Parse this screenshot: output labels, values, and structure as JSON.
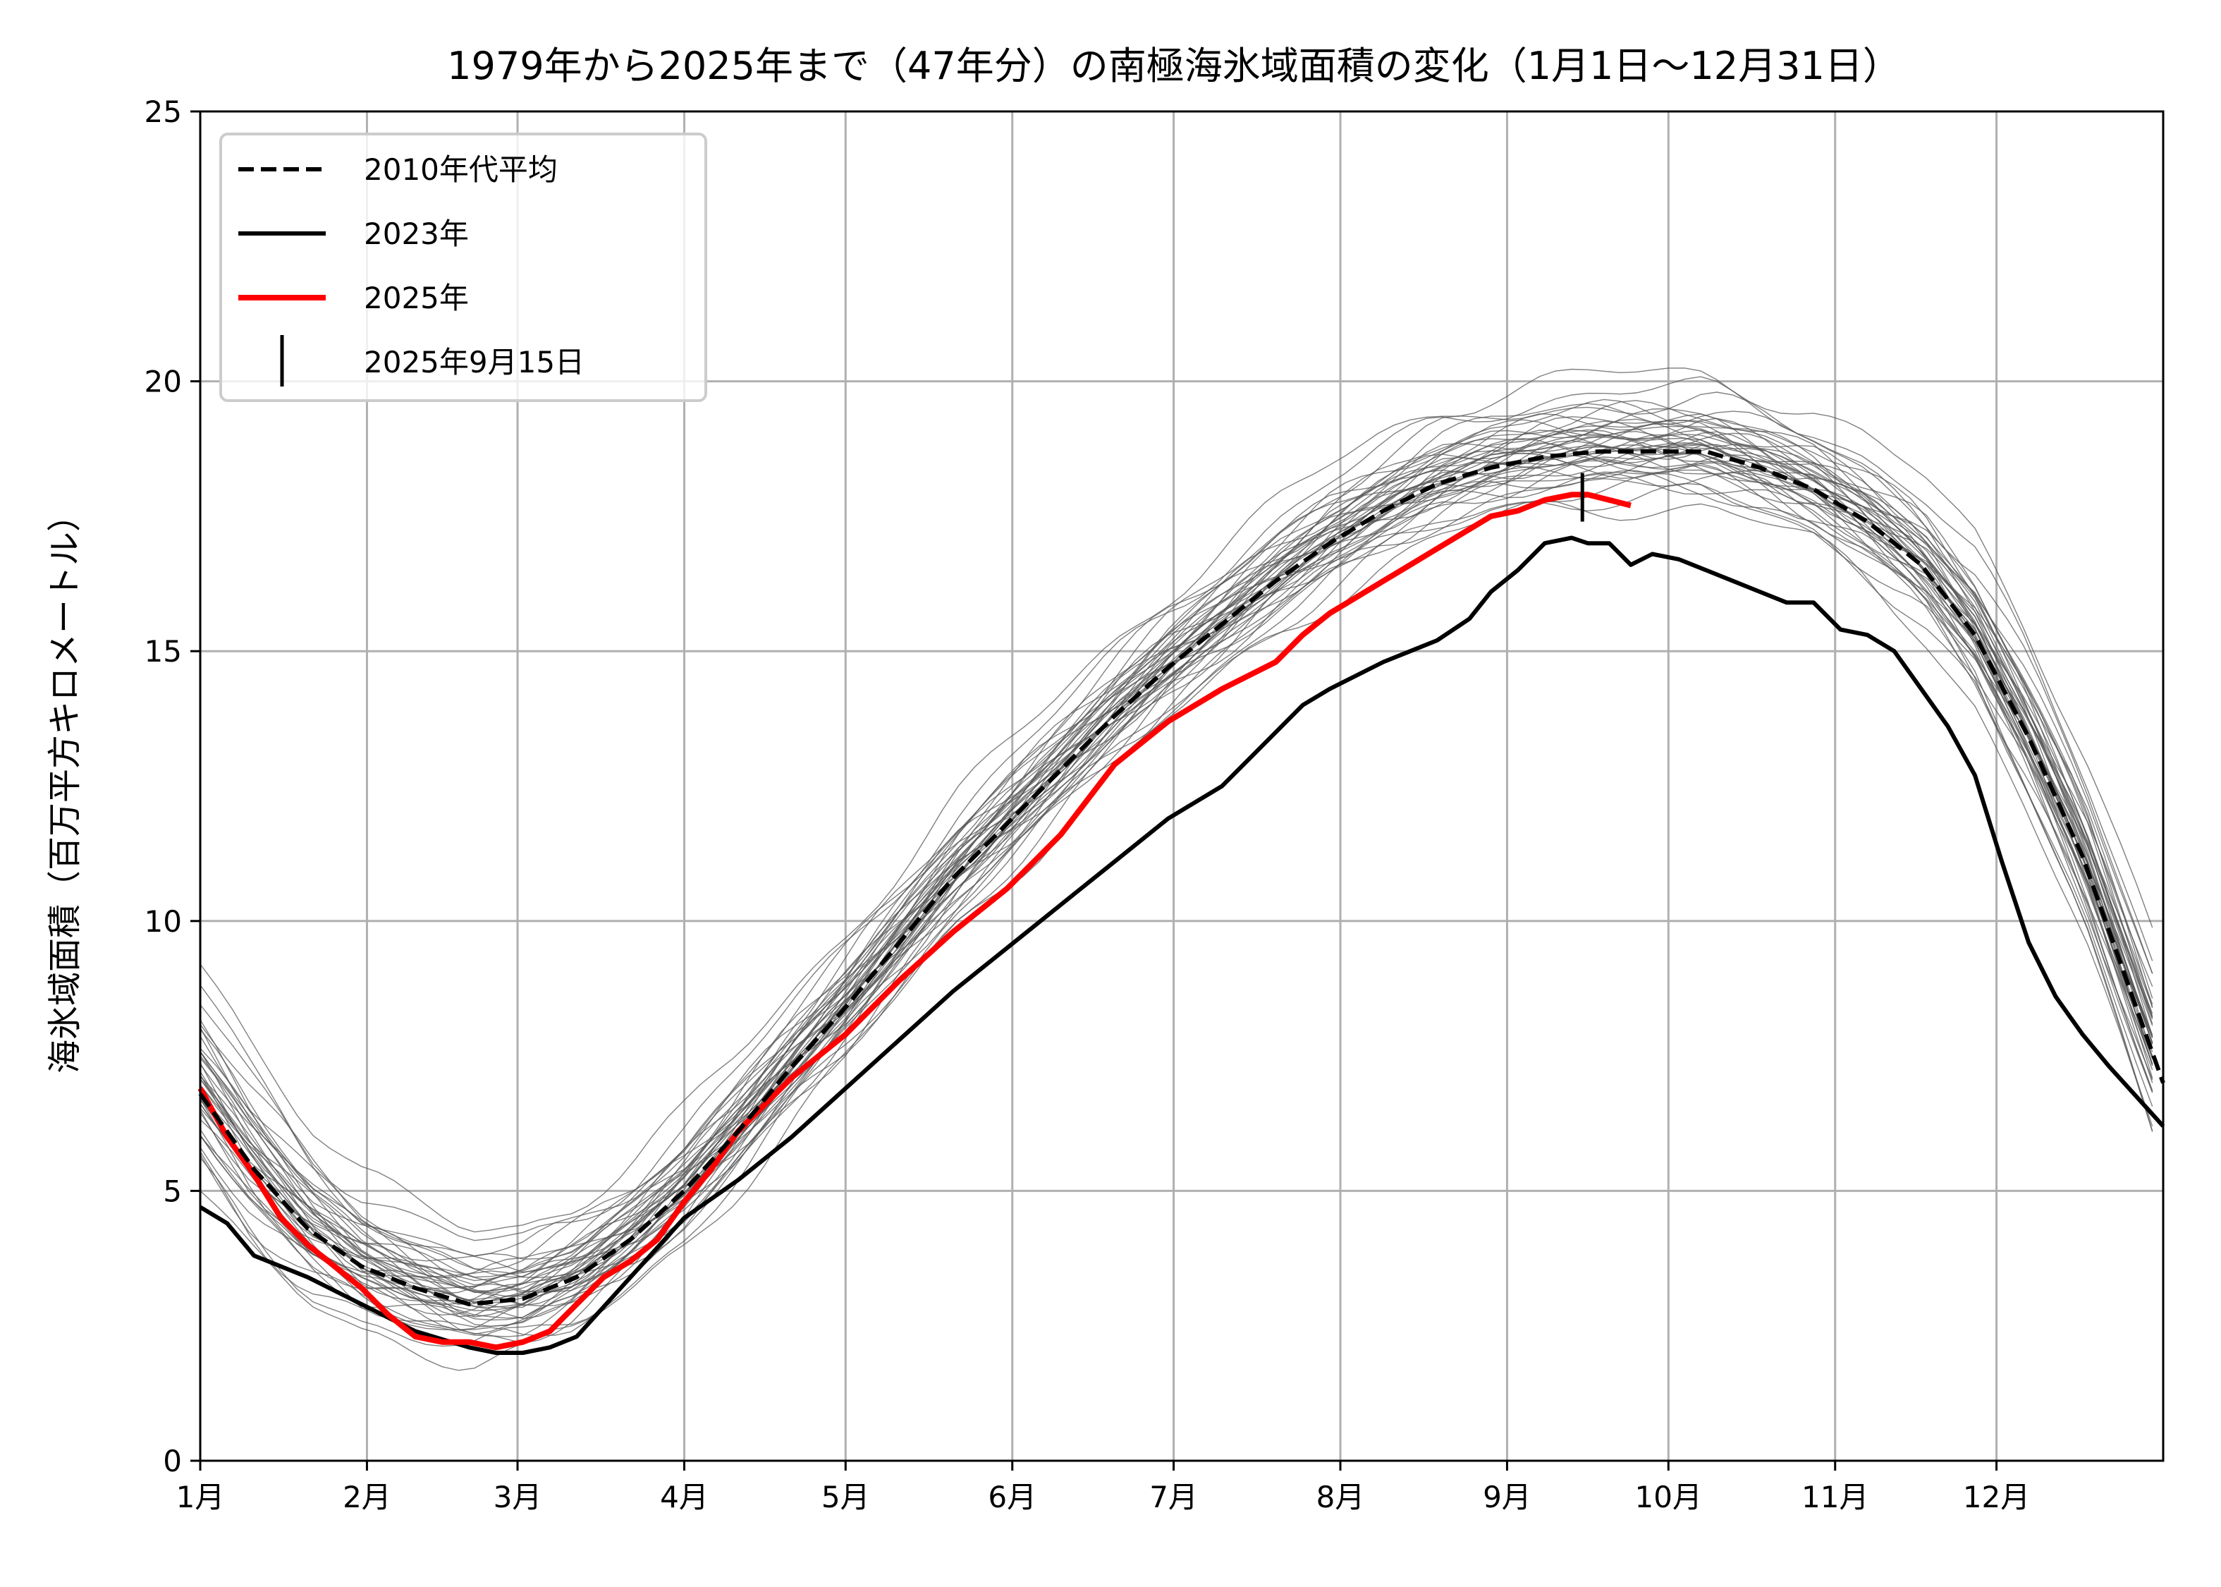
{
  "chart_data": {
    "type": "line",
    "title": "1979年から2025年まで（47年分）の南極海氷域面積の変化（1月1日〜12月31日）",
    "xlabel": "",
    "ylabel": "海氷域面積（百万平方キロメートル）",
    "xlim": [
      0,
      365
    ],
    "ylim": [
      0,
      25
    ],
    "grid": true,
    "legend_position": "top-left",
    "x_unit": "day of year",
    "x_ticks": [
      {
        "day": 0,
        "label": "1月"
      },
      {
        "day": 31,
        "label": "2月"
      },
      {
        "day": 59,
        "label": "3月"
      },
      {
        "day": 90,
        "label": "4月"
      },
      {
        "day": 120,
        "label": "5月"
      },
      {
        "day": 151,
        "label": "6月"
      },
      {
        "day": 181,
        "label": "7月"
      },
      {
        "day": 212,
        "label": "8月"
      },
      {
        "day": 243,
        "label": "9月"
      },
      {
        "day": 273,
        "label": "10月"
      },
      {
        "day": 304,
        "label": "11月"
      },
      {
        "day": 334,
        "label": "12月"
      }
    ],
    "y_ticks": [
      {
        "value": 0,
        "label": "0"
      },
      {
        "value": 5,
        "label": "5"
      },
      {
        "value": 10,
        "label": "10"
      },
      {
        "value": 15,
        "label": "15"
      },
      {
        "value": 20,
        "label": "20"
      },
      {
        "value": 25,
        "label": "25"
      }
    ],
    "series": [
      {
        "name": "2010年代平均",
        "style": "dashed",
        "color": "#000000",
        "x": [
          0,
          10,
          20,
          30,
          40,
          50,
          60,
          70,
          80,
          90,
          100,
          110,
          120,
          130,
          140,
          150,
          160,
          170,
          180,
          190,
          200,
          210,
          220,
          230,
          240,
          250,
          260,
          270,
          280,
          290,
          300,
          310,
          320,
          330,
          340,
          350,
          365
        ],
        "y": [
          6.8,
          5.4,
          4.3,
          3.6,
          3.2,
          2.9,
          3.0,
          3.4,
          4.1,
          5.0,
          6.1,
          7.3,
          8.4,
          9.6,
          10.8,
          11.8,
          12.8,
          13.8,
          14.7,
          15.5,
          16.3,
          17.0,
          17.6,
          18.1,
          18.4,
          18.6,
          18.7,
          18.7,
          18.7,
          18.4,
          18.0,
          17.4,
          16.6,
          15.3,
          13.4,
          11.2,
          7.0
        ]
      },
      {
        "name": "2023年",
        "style": "solid",
        "color": "#000000",
        "x": [
          0,
          5,
          10,
          20,
          30,
          40,
          50,
          55,
          60,
          65,
          70,
          80,
          90,
          100,
          110,
          120,
          130,
          140,
          150,
          160,
          170,
          180,
          190,
          200,
          205,
          210,
          220,
          225,
          230,
          236,
          240,
          245,
          250,
          255,
          258,
          262,
          266,
          270,
          275,
          280,
          285,
          290,
          295,
          300,
          305,
          310,
          315,
          320,
          325,
          330,
          335,
          340,
          345,
          350,
          355,
          365
        ],
        "y": [
          4.7,
          4.4,
          3.8,
          3.4,
          2.9,
          2.4,
          2.1,
          2.0,
          2.0,
          2.1,
          2.3,
          3.4,
          4.5,
          5.2,
          6.0,
          6.9,
          7.8,
          8.7,
          9.5,
          10.3,
          11.1,
          11.9,
          12.5,
          13.5,
          14.0,
          14.3,
          14.8,
          15.0,
          15.2,
          15.6,
          16.1,
          16.5,
          17.0,
          17.1,
          17.0,
          17.0,
          16.6,
          16.8,
          16.7,
          16.5,
          16.3,
          16.1,
          15.9,
          15.9,
          15.4,
          15.3,
          15.0,
          14.3,
          13.6,
          12.7,
          11.1,
          9.6,
          8.6,
          7.9,
          7.3,
          6.2
        ]
      },
      {
        "name": "2025年",
        "style": "solid",
        "color": "#ff0000",
        "x": [
          0,
          5,
          10,
          15,
          20,
          25,
          30,
          35,
          40,
          45,
          50,
          55,
          60,
          65,
          70,
          75,
          80,
          85,
          90,
          95,
          100,
          110,
          120,
          130,
          140,
          150,
          160,
          170,
          180,
          190,
          200,
          205,
          210,
          215,
          220,
          225,
          230,
          235,
          240,
          245,
          250,
          255,
          258,
          262,
          266
        ],
        "y": [
          6.9,
          6.0,
          5.3,
          4.5,
          4.0,
          3.6,
          3.2,
          2.7,
          2.3,
          2.2,
          2.2,
          2.1,
          2.2,
          2.4,
          2.9,
          3.4,
          3.7,
          4.1,
          4.8,
          5.4,
          6.1,
          7.1,
          7.9,
          8.9,
          9.8,
          10.6,
          11.6,
          12.9,
          13.7,
          14.3,
          14.8,
          15.3,
          15.7,
          16.0,
          16.3,
          16.6,
          16.9,
          17.2,
          17.5,
          17.6,
          17.8,
          17.9,
          17.9,
          17.8,
          17.7
        ]
      }
    ],
    "marker": {
      "name": "2025年9月15日",
      "day": 257,
      "y_low": 17.4,
      "y_high": 18.3,
      "style": "vertical-bar",
      "color": "#000000"
    },
    "background_years": {
      "count": 45,
      "color": "#555555",
      "description_note": "thin gray traces of individual years 1979–2024 around the mean",
      "offsets": [
        -1.0,
        -0.8,
        -0.7,
        -0.6,
        -0.5,
        -0.45,
        -0.4,
        -0.35,
        -0.3,
        -0.25,
        -0.2,
        -0.18,
        -0.15,
        -0.12,
        -0.1,
        -0.08,
        -0.05,
        -0.02,
        0.0,
        0.02,
        0.05,
        0.08,
        0.1,
        0.12,
        0.15,
        0.18,
        0.2,
        0.22,
        0.25,
        0.28,
        0.3,
        0.33,
        0.36,
        0.4,
        0.44,
        0.48,
        0.52,
        0.56,
        0.6,
        0.65,
        0.7,
        0.8,
        0.9,
        1.1,
        1.4
      ]
    },
    "legend": [
      {
        "label": "2010年代平均",
        "style": "dashed",
        "color": "#000000"
      },
      {
        "label": "2023年",
        "style": "solid",
        "color": "#000000"
      },
      {
        "label": "2025年",
        "style": "solid",
        "color": "#ff0000"
      },
      {
        "label": "2025年9月15日",
        "style": "vertical-bar",
        "color": "#000000"
      }
    ]
  },
  "colors": {
    "grid": "#b0b0b0",
    "axis": "#000000",
    "red": "#ff0000",
    "legend_border": "#cccccc"
  }
}
